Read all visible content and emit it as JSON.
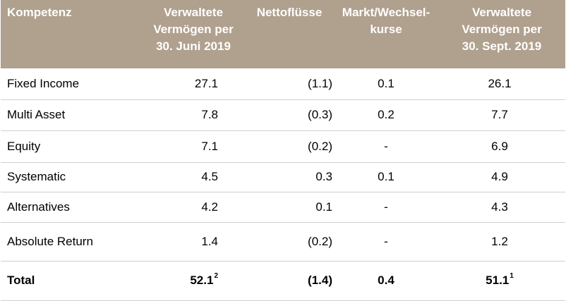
{
  "table": {
    "headers": [
      "Kompetenz",
      "Verwaltete\nVermögen per\n30. Juni 2019",
      "Nettoflüsse",
      "Markt/Wechsel-\nkurse",
      "Verwaltete\nVermögen per\n30. Sept. 2019"
    ],
    "rows": [
      {
        "label": "Fixed Income",
        "aum_june": "27.1",
        "net_flows": "(1.1)",
        "market_fx": "0.1",
        "aum_sept": "26.1"
      },
      {
        "label": "Multi Asset",
        "aum_june": "7.8",
        "net_flows": "(0.3)",
        "market_fx": "0.2",
        "aum_sept": "7.7"
      },
      {
        "label": "Equity",
        "aum_june": "7.1",
        "net_flows": "(0.2)",
        "market_fx": "-",
        "aum_sept": "6.9"
      },
      {
        "label": "Systematic",
        "aum_june": "4.5",
        "net_flows": "0.3",
        "market_fx": "0.1",
        "aum_sept": "4.9"
      },
      {
        "label": "Alternatives",
        "aum_june": "4.2",
        "net_flows": "0.1",
        "market_fx": "-",
        "aum_sept": "4.3"
      },
      {
        "label": "Absolute Return",
        "aum_june": "1.4",
        "net_flows": "(0.2)",
        "market_fx": "-",
        "aum_sept": "1.2"
      }
    ],
    "total": {
      "label": "Total",
      "aum_june": "52.1",
      "aum_june_footnote": "2",
      "net_flows": "(1.4)",
      "market_fx": "0.4",
      "aum_sept": "51.1",
      "aum_sept_footnote": "1"
    }
  },
  "colors": {
    "header_background": "#b0a08e",
    "header_text": "#ffffff",
    "row_divider": "#cfcfcf"
  }
}
